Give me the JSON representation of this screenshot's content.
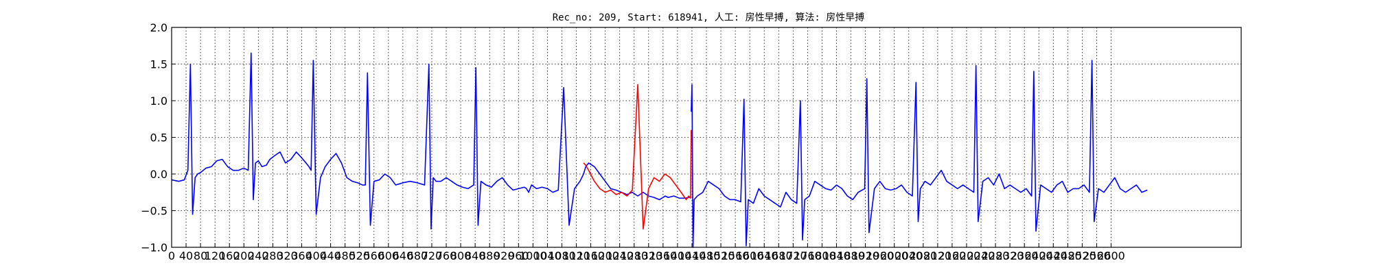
{
  "chart_data": {
    "type": "line",
    "title": "Rec_no: 209, Start: 618941, 人工: 房性早搏, 算法: 房性早搏",
    "xlabel": "",
    "ylabel": "",
    "xlim": [
      0,
      4000
    ],
    "ylim": [
      -1.0,
      2.0
    ],
    "grid": true,
    "y_ticks": [
      -1.0,
      -0.5,
      0.0,
      0.5,
      1.0,
      1.5,
      2.0
    ],
    "y_tick_labels": [
      "−1.0",
      "−0.5",
      "0.0",
      "0.5",
      "1.0",
      "1.5",
      "2.0"
    ],
    "x_ticks": [
      0,
      40,
      80,
      120,
      160,
      200,
      240,
      280,
      320,
      360,
      400,
      440,
      480,
      520,
      560,
      600,
      640,
      680,
      720,
      760,
      800,
      840,
      880,
      920,
      960,
      1000,
      1040,
      1080,
      1120,
      1160,
      1200,
      1240,
      1280,
      1320,
      1360,
      1400,
      1440,
      1480,
      1520,
      1560,
      1600,
      1640,
      1680,
      1720,
      1760,
      1800,
      1840,
      1880,
      1920,
      1960,
      2000,
      2040,
      2080,
      2120,
      2160,
      2200,
      2240,
      2280,
      2320,
      2360,
      2400,
      2440,
      2480,
      2520,
      2560,
      2600
    ],
    "x_tick_labels": [
      "0",
      "40",
      "80",
      "120",
      "160",
      "200",
      "240",
      "280",
      "320",
      "360",
      "400",
      "440",
      "480",
      "520",
      "560",
      "600",
      "640",
      "680",
      "720",
      "760",
      "800",
      "840",
      "880",
      "920",
      "960",
      "1000",
      "1040",
      "1080",
      "1120",
      "1160",
      "1200",
      "1240",
      "1280",
      "1320",
      "1360",
      "1400",
      "1440",
      "1480",
      "1520",
      "1560",
      "1600",
      "1640",
      "1680",
      "1720",
      "1760",
      "1800",
      "1840",
      "1880",
      "1920",
      "1960",
      "2000",
      "2040",
      "2080",
      "2120",
      "2160",
      "2200",
      "2240",
      "2280",
      "2320",
      "2360",
      "2400",
      "2440",
      "2480",
      "2520",
      "2560",
      "2600"
    ],
    "x_axis_span": 2960,
    "sampling_note": "",
    "series": [
      {
        "color": "#0000ff",
        "x": [
          0,
          20,
          35,
          45,
          52,
          58,
          65,
          72,
          80,
          95,
          110,
          125,
          140,
          155,
          170,
          185,
          200,
          212,
          220,
          226,
          232,
          240,
          250,
          262,
          272,
          285,
          300,
          315,
          330,
          345,
          360,
          372,
          380,
          386,
          392,
          400,
          412,
          425,
          440,
          455,
          470,
          485,
          500,
          515,
          528,
          536,
          542,
          550,
          560,
          575,
          590,
          605,
          620,
          640,
          660,
          680,
          700,
          712,
          718,
          724,
          732,
          745,
          760,
          775,
          790,
          805,
          820,
          836,
          842,
          848,
          856,
          870,
          885,
          900,
          915,
          930,
          945,
          960,
          976,
          982,
          988,
          996,
          1010,
          1025,
          1040,
          1055,
          1070,
          1085,
          1100,
          1115,
          1130,
          1140,
          1146,
          1154,
          1170,
          1185,
          1200,
          1215,
          1230,
          1245,
          1260,
          1275,
          1290,
          1305,
          1320,
          1335,
          1350,
          1360,
          1366,
          1374,
          1390,
          1405,
          1420,
          1434
        ],
        "y": [
          -0.08,
          -0.1,
          -0.08,
          0.05,
          1.5,
          -0.55,
          -0.05,
          0.0,
          0.02,
          0.08,
          0.1,
          0.18,
          0.2,
          0.1,
          0.05,
          0.05,
          0.08,
          0.05,
          1.65,
          -0.35,
          0.15,
          0.18,
          0.1,
          0.12,
          0.2,
          0.25,
          0.3,
          0.15,
          0.2,
          0.3,
          0.22,
          0.15,
          0.1,
          0.05,
          1.55,
          -0.55,
          -0.05,
          0.1,
          0.2,
          0.28,
          0.15,
          -0.05,
          -0.1,
          -0.12,
          -0.15,
          -0.15,
          1.38,
          -0.7,
          -0.1,
          -0.08,
          0.0,
          -0.05,
          -0.15,
          -0.12,
          -0.1,
          -0.12,
          -0.15,
          1.5,
          -0.75,
          -0.05,
          -0.1,
          -0.1,
          -0.05,
          -0.1,
          -0.15,
          -0.18,
          -0.2,
          -0.15,
          1.45,
          -0.7,
          -0.1,
          -0.15,
          -0.18,
          -0.1,
          -0.05,
          -0.15,
          -0.22,
          -0.2,
          -0.18,
          -0.2,
          -0.25,
          -0.15,
          -0.2,
          -0.18,
          -0.2,
          -0.25,
          -0.22,
          1.18,
          -0.7,
          -0.2,
          -0.1,
          0.0,
          0.1,
          0.15,
          0.1,
          0.0,
          -0.1,
          -0.2,
          -0.22,
          -0.25,
          -0.28,
          -0.25,
          -0.3,
          -0.25,
          -0.3,
          -0.32,
          -0.35,
          -0.32,
          -0.3,
          -0.32,
          -0.3,
          -0.33,
          -0.33,
          -0.32
        ]
      },
      {
        "color": "#ff0000",
        "x": [
          1140,
          1146,
          1154,
          1170,
          1185,
          1200,
          1215,
          1230,
          1245,
          1260,
          1275,
          1290,
          1305,
          1320,
          1335,
          1350,
          1365,
          1380,
          1395,
          1410,
          1424,
          1431,
          1436,
          1438
        ],
        "y": [
          0.15,
          0.12,
          0.05,
          -0.1,
          -0.2,
          -0.25,
          -0.22,
          -0.28,
          -0.25,
          -0.3,
          -0.22,
          1.22,
          -0.75,
          -0.2,
          -0.05,
          -0.1,
          0.0,
          -0.05,
          -0.15,
          -0.25,
          -0.35,
          -0.3,
          -0.33,
          0.6
        ]
      },
      {
        "color": "#0000ff",
        "x": [
          1438,
          1440,
          1443,
          1446,
          1455,
          1470,
          1485,
          1500,
          1515,
          1530,
          1545,
          1560,
          1575,
          1584,
          1590,
          1596,
          1610,
          1625,
          1640,
          1655,
          1670,
          1685,
          1700,
          1715,
          1730,
          1740,
          1746,
          1752,
          1765,
          1780,
          1795,
          1810,
          1825,
          1840,
          1855,
          1870,
          1885,
          1900,
          1918,
          1924,
          1930,
          1945,
          1960,
          1975,
          1990,
          2005,
          2020,
          2035,
          2050,
          2060,
          2066,
          2072,
          2085,
          2100,
          2115,
          2130,
          2145,
          2160,
          2175,
          2190,
          2205,
          2220,
          2226,
          2232,
          2245,
          2260,
          2275,
          2290,
          2305,
          2320,
          2335,
          2350,
          2365,
          2380,
          2386,
          2392,
          2405,
          2420,
          2435,
          2450,
          2465,
          2480,
          2495,
          2510,
          2525,
          2540,
          2547,
          2553,
          2565,
          2580,
          2595,
          2610,
          2625,
          2640,
          2655,
          2670,
          2685,
          2700
        ],
        "y": [
          0.85,
          1.22,
          -1.0,
          -0.35,
          -0.3,
          -0.25,
          -0.1,
          -0.15,
          -0.2,
          -0.3,
          -0.35,
          -0.35,
          -0.38,
          1.02,
          -0.98,
          -0.35,
          -0.4,
          -0.2,
          -0.3,
          -0.35,
          -0.4,
          -0.45,
          -0.25,
          -0.35,
          -0.4,
          1.0,
          -0.9,
          -0.35,
          -0.3,
          -0.1,
          -0.15,
          -0.2,
          -0.22,
          -0.15,
          -0.2,
          -0.3,
          -0.35,
          -0.25,
          -0.2,
          1.3,
          -0.8,
          -0.2,
          -0.1,
          -0.2,
          -0.22,
          -0.2,
          -0.15,
          -0.25,
          -0.3,
          1.25,
          -0.65,
          -0.2,
          -0.1,
          -0.15,
          -0.05,
          0.05,
          -0.1,
          -0.15,
          -0.2,
          -0.15,
          -0.2,
          -0.25,
          1.48,
          -0.65,
          -0.1,
          -0.05,
          -0.15,
          0.0,
          -0.2,
          -0.15,
          -0.2,
          -0.25,
          -0.2,
          -0.3,
          1.4,
          -0.78,
          -0.15,
          -0.2,
          -0.25,
          -0.15,
          -0.1,
          -0.25,
          -0.2,
          -0.2,
          -0.15,
          -0.25,
          1.55,
          -0.65,
          -0.2,
          -0.25,
          -0.15,
          -0.05,
          -0.2,
          -0.25,
          -0.2,
          -0.15,
          -0.25,
          -0.22
        ]
      }
    ]
  }
}
